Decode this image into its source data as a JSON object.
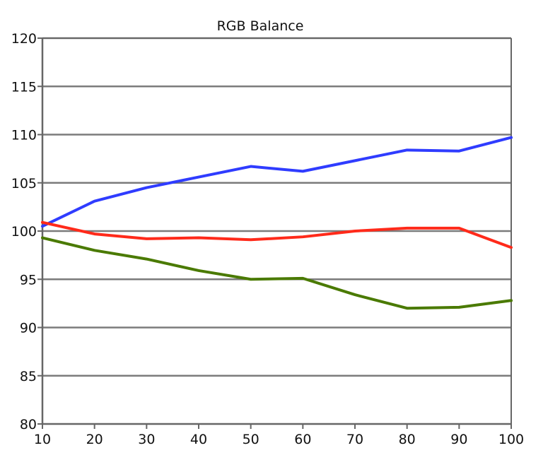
{
  "chart_data": {
    "type": "line",
    "title": "RGB Balance",
    "xlabel": "",
    "ylabel": "",
    "x": [
      10,
      20,
      30,
      40,
      50,
      60,
      70,
      80,
      90,
      100
    ],
    "xlim": [
      10,
      100
    ],
    "ylim": [
      80,
      120
    ],
    "xticks": [
      "10",
      "20",
      "30",
      "40",
      "50",
      "60",
      "70",
      "80",
      "90",
      "100"
    ],
    "yticks": [
      "80",
      "85",
      "90",
      "95",
      "100",
      "105",
      "110",
      "115",
      "120"
    ],
    "grid": true,
    "legend": "none",
    "series": [
      {
        "color": "#2f3cff",
        "values": [
          100.5,
          103.1,
          104.5,
          105.6,
          106.7,
          106.2,
          107.3,
          108.4,
          108.3,
          109.7
        ]
      },
      {
        "color": "#ff2a1a",
        "values": [
          100.9,
          99.7,
          99.2,
          99.3,
          99.1,
          99.4,
          100.0,
          100.3,
          100.3,
          98.3
        ]
      },
      {
        "color": "#4a7a00",
        "values": [
          99.3,
          98.0,
          97.1,
          95.9,
          95.0,
          95.1,
          93.4,
          92.0,
          92.1,
          92.8
        ]
      }
    ]
  },
  "colors": {
    "axis": "#666666",
    "grid": "#7b7b7b",
    "background": "#ffffff"
  }
}
